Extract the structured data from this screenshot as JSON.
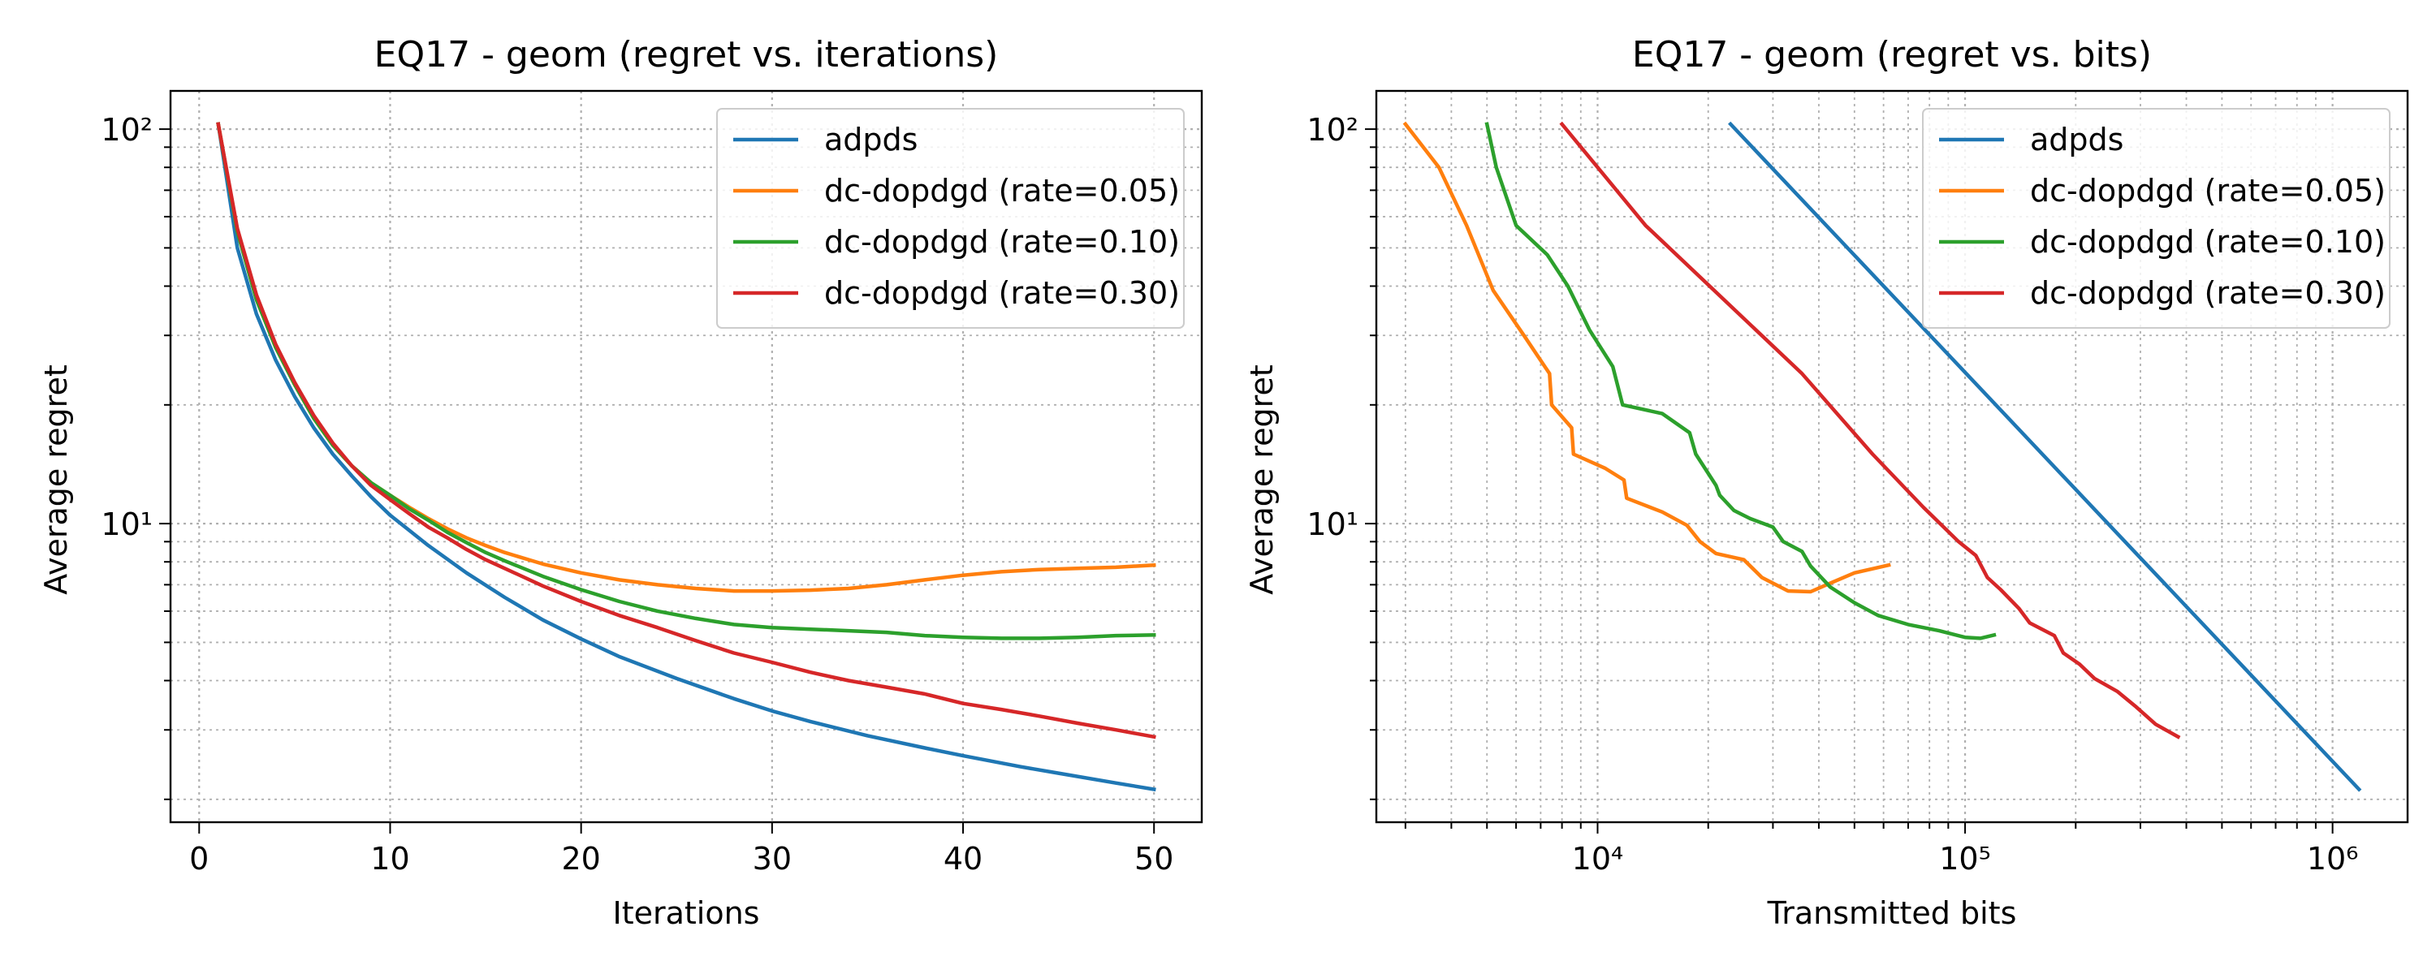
{
  "chart_data": [
    {
      "type": "line",
      "title": "EQ17 - geom (regret vs. iterations)",
      "xlabel": "Iterations",
      "ylabel": "Average regret",
      "xscale": "linear",
      "yscale": "log",
      "xlim": [
        -1.5,
        52.5
      ],
      "ylim": [
        1.75,
        125
      ],
      "xticks": [
        0,
        10,
        20,
        30,
        40,
        50
      ],
      "xtick_labels": [
        "0",
        "10",
        "20",
        "30",
        "40",
        "50"
      ],
      "yticks": [
        10,
        100
      ],
      "ytick_labels": [
        "10¹",
        "10²"
      ],
      "grid": true,
      "legend_position": "top-right",
      "series": [
        {
          "name": "adpds",
          "color": "#1f77b4",
          "points": [
            [
              1,
              103
            ],
            [
              2,
              50
            ],
            [
              3,
              34
            ],
            [
              4,
              26
            ],
            [
              5,
              21
            ],
            [
              6,
              17.5
            ],
            [
              7,
              15
            ],
            [
              8,
              13.2
            ],
            [
              9,
              11.7
            ],
            [
              10,
              10.5
            ],
            [
              12,
              8.8
            ],
            [
              14,
              7.5
            ],
            [
              16,
              6.5
            ],
            [
              18,
              5.7
            ],
            [
              20,
              5.1
            ],
            [
              22,
              4.6
            ],
            [
              25,
              4.05
            ],
            [
              28,
              3.6
            ],
            [
              30,
              3.35
            ],
            [
              32,
              3.15
            ],
            [
              35,
              2.9
            ],
            [
              38,
              2.7
            ],
            [
              40,
              2.58
            ],
            [
              43,
              2.42
            ],
            [
              45,
              2.33
            ],
            [
              48,
              2.2
            ],
            [
              50,
              2.12
            ]
          ]
        },
        {
          "name": "dc-dopdgd (rate=0.05)",
          "color": "#ff7f0e",
          "points": [
            [
              1,
              103
            ],
            [
              2,
              55
            ],
            [
              3,
              37
            ],
            [
              4,
              28
            ],
            [
              5,
              22.5
            ],
            [
              6,
              18.5
            ],
            [
              7,
              15.8
            ],
            [
              8,
              14
            ],
            [
              9,
              12.7
            ],
            [
              10,
              11.8
            ],
            [
              11,
              11
            ],
            [
              12,
              10.3
            ],
            [
              13,
              9.7
            ],
            [
              14,
              9.2
            ],
            [
              15,
              8.8
            ],
            [
              16,
              8.45
            ],
            [
              18,
              7.9
            ],
            [
              20,
              7.5
            ],
            [
              22,
              7.2
            ],
            [
              24,
              7
            ],
            [
              26,
              6.85
            ],
            [
              28,
              6.75
            ],
            [
              30,
              6.75
            ],
            [
              32,
              6.78
            ],
            [
              34,
              6.85
            ],
            [
              36,
              7
            ],
            [
              38,
              7.2
            ],
            [
              40,
              7.4
            ],
            [
              42,
              7.55
            ],
            [
              44,
              7.65
            ],
            [
              46,
              7.7
            ],
            [
              48,
              7.75
            ],
            [
              50,
              7.85
            ]
          ]
        },
        {
          "name": "dc-dopdgd (rate=0.10)",
          "color": "#2ca02c",
          "points": [
            [
              1,
              103
            ],
            [
              2,
              55
            ],
            [
              3,
              37
            ],
            [
              4,
              28
            ],
            [
              5,
              22.5
            ],
            [
              6,
              18.5
            ],
            [
              7,
              15.8
            ],
            [
              8,
              14
            ],
            [
              9,
              12.7
            ],
            [
              10,
              11.8
            ],
            [
              11,
              10.9
            ],
            [
              12,
              10.2
            ],
            [
              13,
              9.5
            ],
            [
              14,
              8.95
            ],
            [
              15,
              8.45
            ],
            [
              16,
              8.05
            ],
            [
              18,
              7.35
            ],
            [
              20,
              6.8
            ],
            [
              22,
              6.35
            ],
            [
              24,
              6
            ],
            [
              26,
              5.75
            ],
            [
              28,
              5.55
            ],
            [
              30,
              5.45
            ],
            [
              32,
              5.4
            ],
            [
              34,
              5.35
            ],
            [
              36,
              5.3
            ],
            [
              38,
              5.2
            ],
            [
              40,
              5.15
            ],
            [
              42,
              5.12
            ],
            [
              44,
              5.12
            ],
            [
              46,
              5.15
            ],
            [
              48,
              5.2
            ],
            [
              50,
              5.22
            ]
          ]
        },
        {
          "name": "dc-dopdgd (rate=0.30)",
          "color": "#d62728",
          "points": [
            [
              1,
              103
            ],
            [
              2,
              56
            ],
            [
              3,
              38
            ],
            [
              4,
              28.5
            ],
            [
              5,
              22.8
            ],
            [
              6,
              18.8
            ],
            [
              7,
              16
            ],
            [
              8,
              14
            ],
            [
              9,
              12.5
            ],
            [
              10,
              11.5
            ],
            [
              11,
              10.6
            ],
            [
              12,
              9.8
            ],
            [
              13,
              9.2
            ],
            [
              14,
              8.6
            ],
            [
              15,
              8.1
            ],
            [
              16,
              7.7
            ],
            [
              18,
              6.95
            ],
            [
              20,
              6.35
            ],
            [
              22,
              5.85
            ],
            [
              24,
              5.45
            ],
            [
              26,
              5.05
            ],
            [
              28,
              4.7
            ],
            [
              30,
              4.45
            ],
            [
              32,
              4.2
            ],
            [
              34,
              4.0
            ],
            [
              36,
              3.85
            ],
            [
              38,
              3.7
            ],
            [
              40,
              3.5
            ],
            [
              42,
              3.38
            ],
            [
              44,
              3.25
            ],
            [
              46,
              3.12
            ],
            [
              48,
              3.0
            ],
            [
              50,
              2.88
            ]
          ]
        }
      ]
    },
    {
      "type": "line",
      "title": "EQ17 - geom (regret vs. bits)",
      "xlabel": "Transmitted bits",
      "ylabel": "Average regret",
      "xscale": "log",
      "yscale": "log",
      "xlim": [
        2500,
        1600000
      ],
      "ylim": [
        1.75,
        125
      ],
      "xticks": [
        10000,
        100000,
        1000000
      ],
      "xtick_labels": [
        "10⁴",
        "10⁵",
        "10⁶"
      ],
      "yticks": [
        10,
        100
      ],
      "ytick_labels": [
        "10¹",
        "10²"
      ],
      "grid": true,
      "legend_position": "top-right",
      "series": [
        {
          "name": "adpds",
          "color": "#1f77b4",
          "points": [
            [
              23000,
              103
            ],
            [
              1180000,
              2.12
            ]
          ]
        },
        {
          "name": "dc-dopdgd (rate=0.05)",
          "color": "#ff7f0e",
          "points": [
            [
              3000,
              103
            ],
            [
              3700,
              80
            ],
            [
              4400,
              57
            ],
            [
              5200,
              39
            ],
            [
              6300,
              30
            ],
            [
              7400,
              24
            ],
            [
              7500,
              20
            ],
            [
              8500,
              17.5
            ],
            [
              8600,
              15
            ],
            [
              10500,
              13.8
            ],
            [
              11800,
              12.9
            ],
            [
              12000,
              11.6
            ],
            [
              15000,
              10.7
            ],
            [
              17500,
              9.9
            ],
            [
              19000,
              9
            ],
            [
              21000,
              8.4
            ],
            [
              25000,
              8.1
            ],
            [
              28000,
              7.3
            ],
            [
              33000,
              6.75
            ],
            [
              38000,
              6.72
            ],
            [
              42000,
              7
            ],
            [
              50000,
              7.5
            ],
            [
              62000,
              7.85
            ]
          ]
        },
        {
          "name": "dc-dopdgd (rate=0.10)",
          "color": "#2ca02c",
          "points": [
            [
              5000,
              103
            ],
            [
              5300,
              80
            ],
            [
              6000,
              57
            ],
            [
              7300,
              48
            ],
            [
              8300,
              40
            ],
            [
              9500,
              31
            ],
            [
              11000,
              25
            ],
            [
              11700,
              20
            ],
            [
              15000,
              19
            ],
            [
              17800,
              17
            ],
            [
              18500,
              15
            ],
            [
              21000,
              12.5
            ],
            [
              21500,
              11.8
            ],
            [
              23500,
              10.8
            ],
            [
              26000,
              10.3
            ],
            [
              30000,
              9.8
            ],
            [
              32000,
              9
            ],
            [
              36000,
              8.5
            ],
            [
              38000,
              7.8
            ],
            [
              43000,
              6.9
            ],
            [
              50000,
              6.3
            ],
            [
              58000,
              5.85
            ],
            [
              70000,
              5.55
            ],
            [
              85000,
              5.35
            ],
            [
              100000,
              5.15
            ],
            [
              110000,
              5.12
            ],
            [
              120000,
              5.22
            ]
          ]
        },
        {
          "name": "dc-dopdgd (rate=0.30)",
          "color": "#d62728",
          "points": [
            [
              8000,
              103
            ],
            [
              13500,
              57
            ],
            [
              36000,
              24
            ],
            [
              56000,
              15
            ],
            [
              77000,
              11
            ],
            [
              96000,
              9
            ],
            [
              107000,
              8.3
            ],
            [
              115000,
              7.3
            ],
            [
              125000,
              6.8
            ],
            [
              140000,
              6.1
            ],
            [
              150000,
              5.6
            ],
            [
              175000,
              5.2
            ],
            [
              185000,
              4.7
            ],
            [
              205000,
              4.4
            ],
            [
              225000,
              4.05
            ],
            [
              260000,
              3.75
            ],
            [
              290000,
              3.45
            ],
            [
              330000,
              3.1
            ],
            [
              380000,
              2.88
            ]
          ]
        }
      ]
    }
  ]
}
